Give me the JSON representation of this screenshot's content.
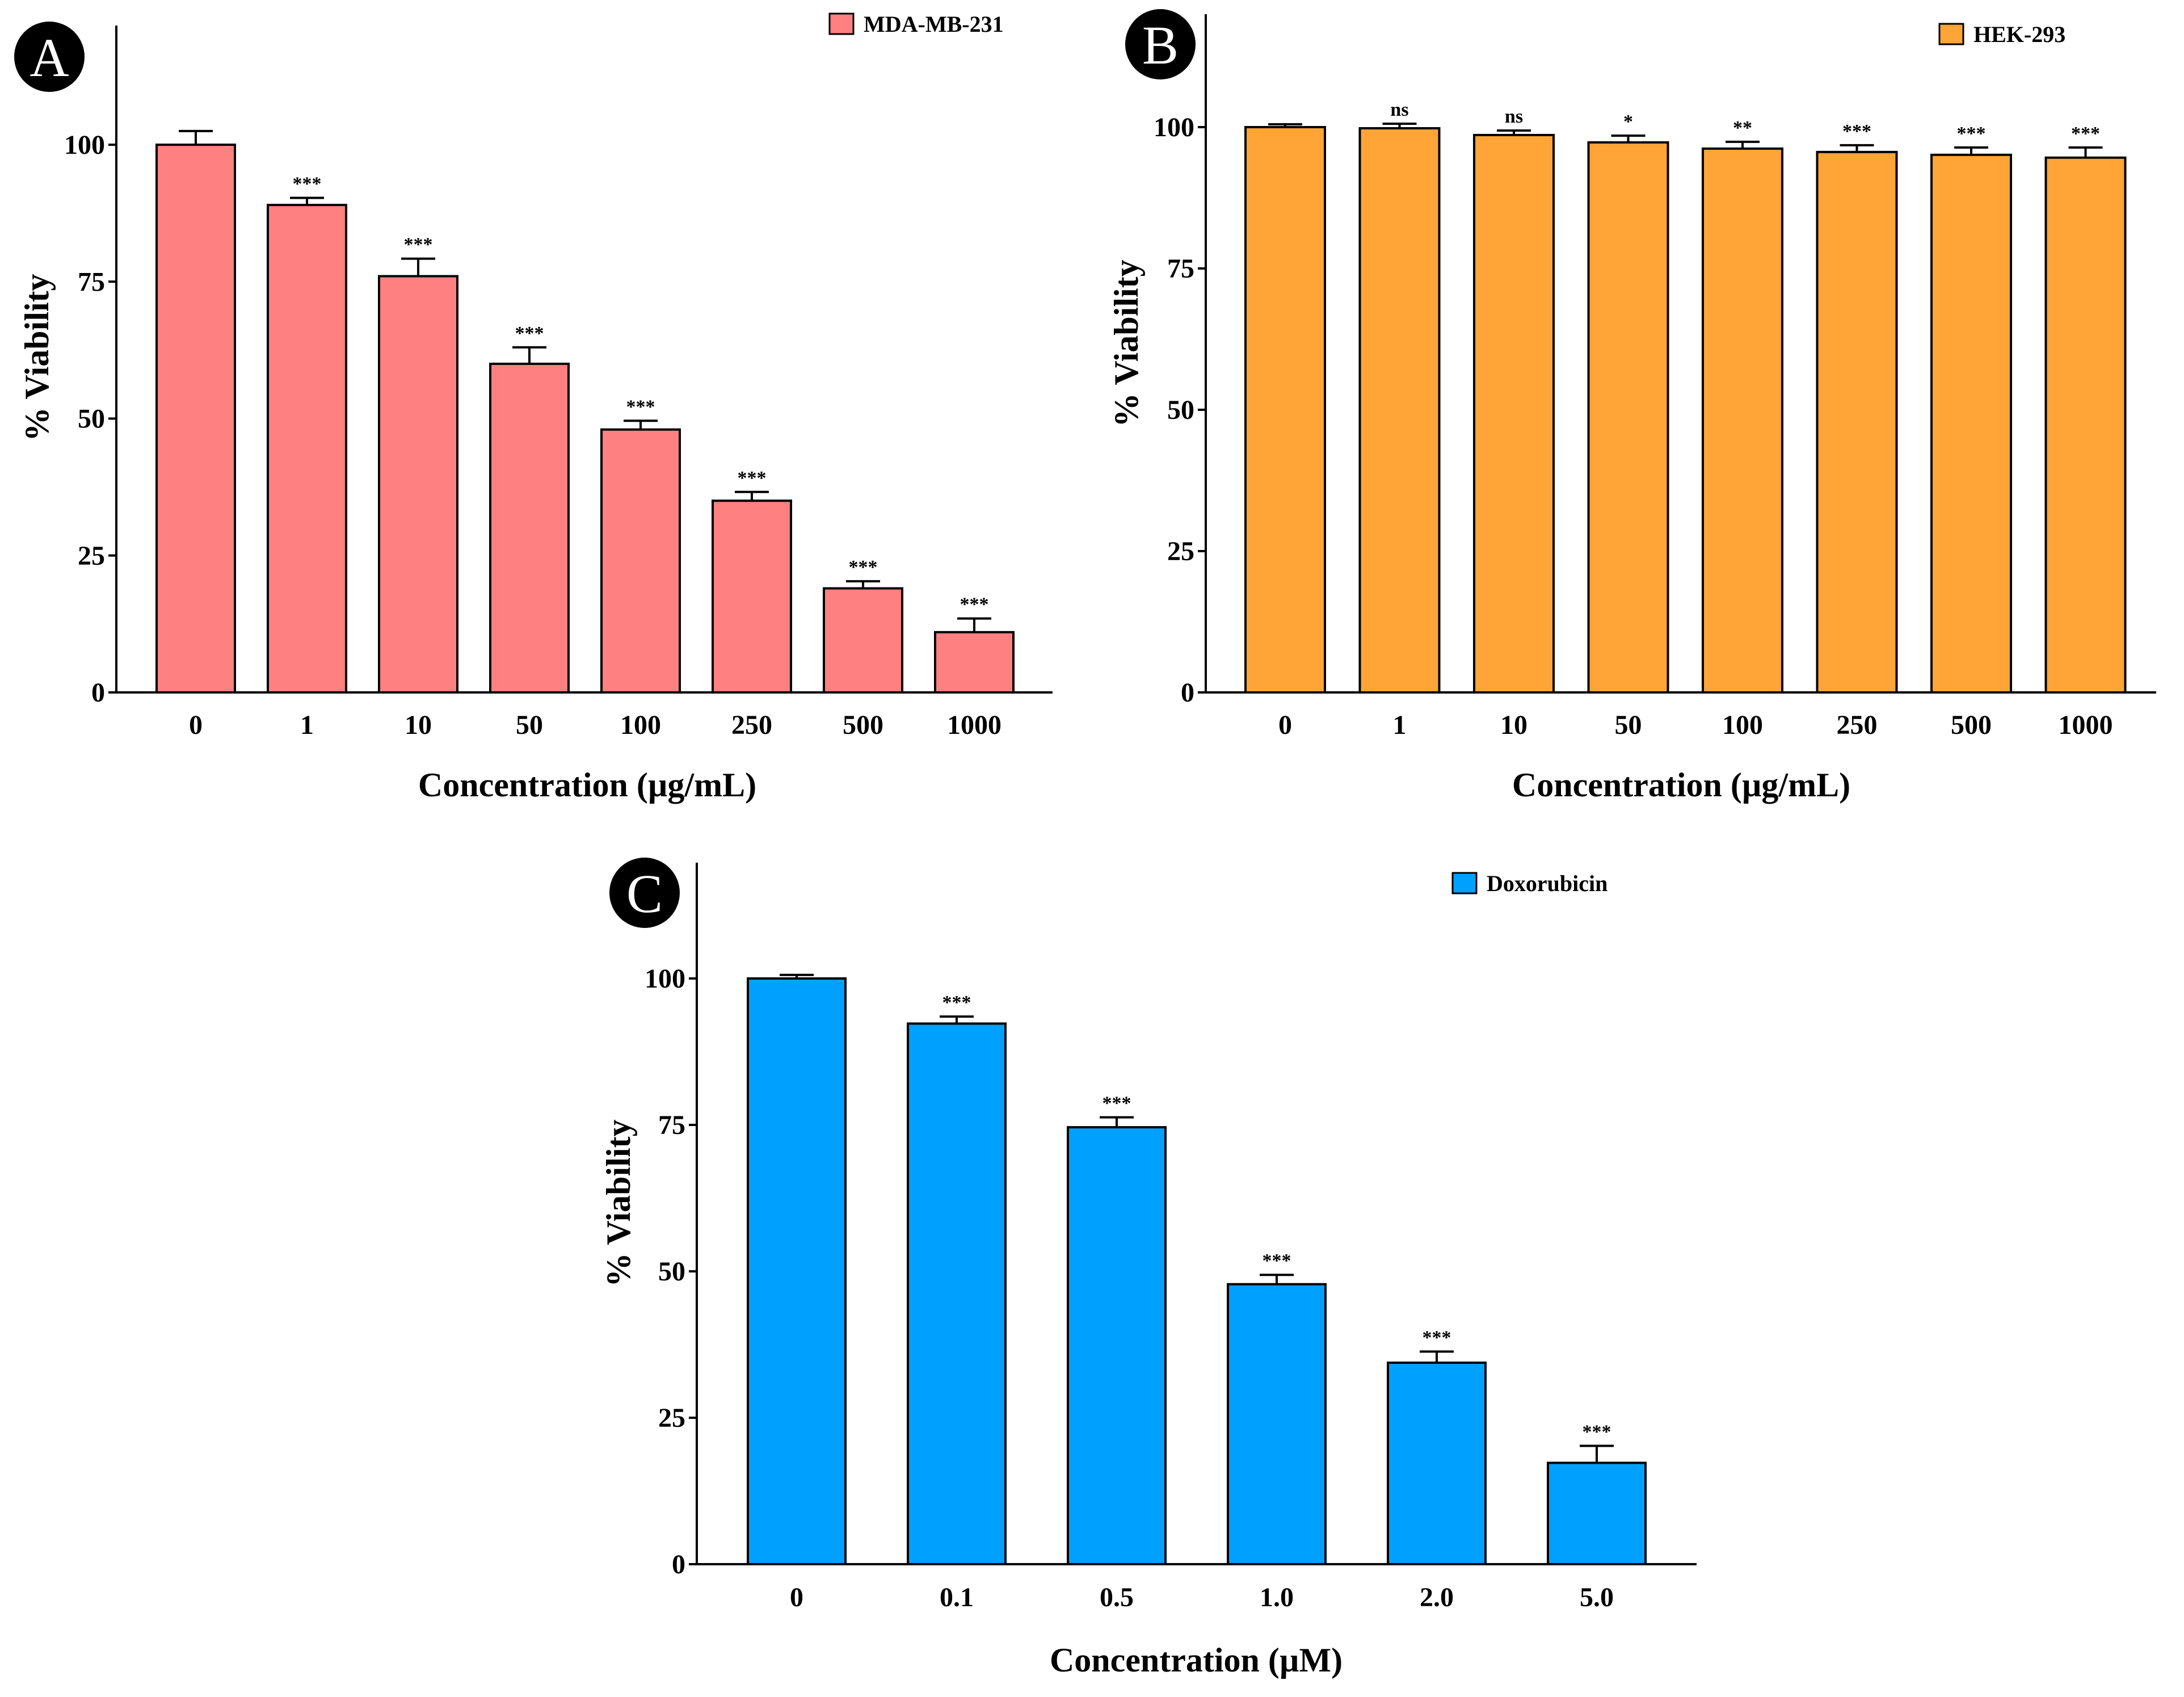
{
  "chart_data": [
    {
      "panel": "A",
      "type": "bar",
      "legend": "MDA-MB-231",
      "color": "#FF8080",
      "categories": [
        "0",
        "1",
        "10",
        "50",
        "100",
        "250",
        "500",
        "1000"
      ],
      "values": [
        100,
        89,
        76,
        60,
        48,
        35,
        19,
        11
      ],
      "errors": [
        2.5,
        1.3,
        3.2,
        3.0,
        1.6,
        1.6,
        1.3,
        2.5
      ],
      "significance": [
        "",
        "***",
        "***",
        "***",
        "***",
        "***",
        "***",
        "***"
      ],
      "xlabel": "Concentration (µg/mL)",
      "ylabel": "% Viability",
      "yticks": [
        "0",
        "25",
        "50",
        "75",
        "100"
      ],
      "ylim": [
        0,
        120
      ]
    },
    {
      "panel": "B",
      "type": "bar",
      "legend": "HEK-293",
      "color": "#FFA436",
      "categories": [
        "0",
        "1",
        "10",
        "50",
        "100",
        "250",
        "500",
        "1000"
      ],
      "values": [
        100,
        99.8,
        98.6,
        97.3,
        96.2,
        95.6,
        95.1,
        94.6
      ],
      "errors": [
        0.5,
        0.8,
        0.8,
        1.2,
        1.2,
        1.2,
        1.3,
        1.8
      ],
      "significance": [
        "",
        "ns",
        "ns",
        "*",
        "**",
        "***",
        "***",
        "***"
      ],
      "xlabel": "Concentration (µg/mL)",
      "ylabel": "% Viability",
      "yticks": [
        "0",
        "25",
        "50",
        "75",
        "100"
      ],
      "ylim": [
        0,
        120
      ]
    },
    {
      "panel": "C",
      "type": "bar",
      "legend": "Doxorubicin",
      "color": "#00A0FF",
      "categories": [
        "0",
        "0.1",
        "0.5",
        "1.0",
        "2.0",
        "5.0"
      ],
      "values": [
        100,
        92.3,
        74.6,
        47.8,
        34.4,
        17.3
      ],
      "errors": [
        0.6,
        1.2,
        1.7,
        1.6,
        1.9,
        2.9
      ],
      "significance": [
        "",
        "***",
        "***",
        "***",
        "***",
        "***"
      ],
      "xlabel": "Concentration (µM)",
      "ylabel": "% Viability",
      "yticks": [
        "0",
        "25",
        "50",
        "75",
        "100"
      ],
      "ylim": [
        0,
        120
      ]
    }
  ]
}
